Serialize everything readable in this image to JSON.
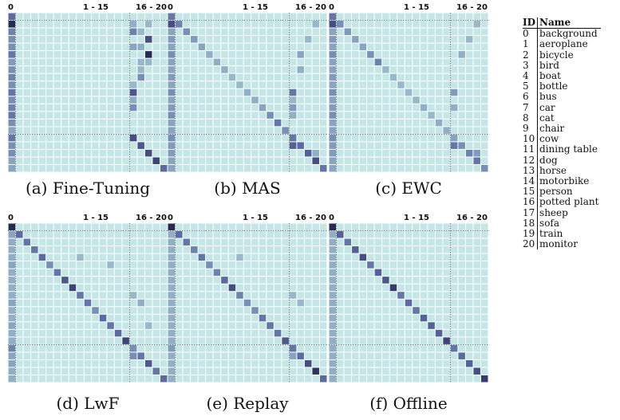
{
  "header_labels": [
    "0",
    "1 - 15",
    "16 - 20"
  ],
  "colors": {
    "background_cell": "#c4e6e6",
    "grid_line": "#ffffff",
    "divider_line": "#555555",
    "scale": [
      "#bfe4e4",
      "#9dc3cd",
      "#7f9bbd",
      "#5b6aa0",
      "#3d4578",
      "#1e2246"
    ]
  },
  "panels": [
    {
      "caption": "(a) Fine-Tuning",
      "col0": [
        0.6,
        0.95,
        0.5,
        0.45,
        0.45,
        0.55,
        0.4,
        0.45,
        0.5,
        0.45,
        0.55,
        0.45,
        0.5,
        0.55,
        0.45,
        0.35,
        0.55,
        0.45,
        0.45,
        0.35,
        0.35
      ],
      "cells": [
        [
          1,
          16,
          0.3
        ],
        [
          1,
          18,
          0.25
        ],
        [
          2,
          16,
          0.5
        ],
        [
          2,
          17,
          0.25
        ],
        [
          3,
          18,
          0.75
        ],
        [
          4,
          16,
          0.35
        ],
        [
          4,
          17,
          0.3
        ],
        [
          5,
          18,
          0.95
        ],
        [
          6,
          17,
          0.25
        ],
        [
          6,
          18,
          0.25
        ],
        [
          7,
          17,
          0.25
        ],
        [
          8,
          17,
          0.45
        ],
        [
          9,
          16,
          0.25
        ],
        [
          10,
          16,
          0.7
        ],
        [
          11,
          16,
          0.3
        ],
        [
          12,
          16,
          0.45
        ],
        [
          16,
          16,
          0.75
        ],
        [
          17,
          17,
          0.7
        ],
        [
          18,
          18,
          0.75
        ],
        [
          19,
          19,
          0.8
        ],
        [
          20,
          20,
          0.6
        ]
      ]
    },
    {
      "caption": "(b) MAS",
      "col0": [
        0.55,
        0.75,
        0.35,
        0.4,
        0.35,
        0.45,
        0.35,
        0.35,
        0.4,
        0.35,
        0.45,
        0.35,
        0.4,
        0.45,
        0.35,
        0.35,
        0.45,
        0.4,
        0.4,
        0.35,
        0.35
      ],
      "cells": [
        [
          1,
          1,
          0.5
        ],
        [
          2,
          2,
          0.45
        ],
        [
          3,
          3,
          0.4
        ],
        [
          4,
          4,
          0.35
        ],
        [
          5,
          5,
          0.3
        ],
        [
          6,
          6,
          0.3
        ],
        [
          7,
          7,
          0.3
        ],
        [
          8,
          8,
          0.25
        ],
        [
          9,
          9,
          0.25
        ],
        [
          10,
          10,
          0.3
        ],
        [
          11,
          11,
          0.3
        ],
        [
          12,
          12,
          0.35
        ],
        [
          13,
          13,
          0.45
        ],
        [
          14,
          14,
          0.55
        ],
        [
          15,
          15,
          0.45
        ],
        [
          16,
          16,
          0.55
        ],
        [
          17,
          17,
          0.6
        ],
        [
          18,
          18,
          0.65
        ],
        [
          19,
          19,
          0.75
        ],
        [
          20,
          20,
          0.55
        ],
        [
          1,
          19,
          0.25
        ],
        [
          3,
          18,
          0.25
        ],
        [
          5,
          17,
          0.35
        ],
        [
          7,
          17,
          0.3
        ],
        [
          10,
          16,
          0.55
        ],
        [
          11,
          16,
          0.25
        ],
        [
          12,
          16,
          0.4
        ],
        [
          13,
          16,
          0.3
        ],
        [
          17,
          16,
          0.65
        ],
        [
          18,
          19,
          0.3
        ]
      ]
    },
    {
      "caption": "(c) EWC",
      "col0": [
        0.55,
        0.75,
        0.35,
        0.4,
        0.35,
        0.45,
        0.35,
        0.35,
        0.4,
        0.35,
        0.45,
        0.35,
        0.4,
        0.45,
        0.35,
        0.35,
        0.45,
        0.4,
        0.4,
        0.35,
        0.35
      ],
      "cells": [
        [
          1,
          1,
          0.45
        ],
        [
          2,
          2,
          0.4
        ],
        [
          3,
          3,
          0.35
        ],
        [
          4,
          4,
          0.35
        ],
        [
          5,
          5,
          0.45
        ],
        [
          6,
          6,
          0.5
        ],
        [
          7,
          7,
          0.25
        ],
        [
          8,
          8,
          0.25
        ],
        [
          9,
          9,
          0.25
        ],
        [
          10,
          10,
          0.25
        ],
        [
          11,
          11,
          0.25
        ],
        [
          12,
          12,
          0.3
        ],
        [
          13,
          13,
          0.25
        ],
        [
          14,
          14,
          0.3
        ],
        [
          15,
          15,
          0.3
        ],
        [
          16,
          16,
          0.35
        ],
        [
          17,
          17,
          0.45
        ],
        [
          18,
          18,
          0.5
        ],
        [
          19,
          19,
          0.55
        ],
        [
          20,
          20,
          0.45
        ],
        [
          1,
          19,
          0.25
        ],
        [
          3,
          18,
          0.25
        ],
        [
          5,
          17,
          0.3
        ],
        [
          10,
          16,
          0.4
        ],
        [
          12,
          16,
          0.3
        ],
        [
          17,
          16,
          0.55
        ],
        [
          18,
          19,
          0.4
        ]
      ]
    },
    {
      "caption": "(d) LwF",
      "col0": [
        0.95,
        0.35,
        0.3,
        0.3,
        0.3,
        0.35,
        0.3,
        0.3,
        0.3,
        0.3,
        0.35,
        0.3,
        0.3,
        0.35,
        0.3,
        0.3,
        0.5,
        0.35,
        0.35,
        0.3,
        0.3
      ],
      "cells": [
        [
          1,
          1,
          0.6
        ],
        [
          2,
          2,
          0.55
        ],
        [
          3,
          3,
          0.55
        ],
        [
          4,
          4,
          0.6
        ],
        [
          5,
          5,
          0.45
        ],
        [
          6,
          6,
          0.55
        ],
        [
          7,
          7,
          0.7
        ],
        [
          8,
          8,
          0.8
        ],
        [
          9,
          9,
          0.55
        ],
        [
          10,
          10,
          0.55
        ],
        [
          11,
          11,
          0.45
        ],
        [
          12,
          12,
          0.6
        ],
        [
          13,
          13,
          0.55
        ],
        [
          14,
          14,
          0.6
        ],
        [
          15,
          15,
          0.8
        ],
        [
          16,
          16,
          0.45
        ],
        [
          17,
          17,
          0.55
        ],
        [
          18,
          18,
          0.7
        ],
        [
          19,
          19,
          0.55
        ],
        [
          20,
          20,
          0.6
        ],
        [
          4,
          9,
          0.25
        ],
        [
          5,
          13,
          0.25
        ],
        [
          9,
          16,
          0.25
        ],
        [
          10,
          17,
          0.3
        ],
        [
          13,
          18,
          0.25
        ],
        [
          17,
          16,
          0.45
        ]
      ]
    },
    {
      "caption": "(e) Replay",
      "col0": [
        0.95,
        0.3,
        0.3,
        0.3,
        0.3,
        0.3,
        0.3,
        0.3,
        0.3,
        0.3,
        0.3,
        0.3,
        0.3,
        0.3,
        0.3,
        0.3,
        0.4,
        0.3,
        0.3,
        0.3,
        0.3
      ],
      "cells": [
        [
          1,
          1,
          0.6
        ],
        [
          2,
          2,
          0.55
        ],
        [
          3,
          3,
          0.5
        ],
        [
          4,
          4,
          0.55
        ],
        [
          5,
          5,
          0.45
        ],
        [
          6,
          6,
          0.5
        ],
        [
          7,
          7,
          0.6
        ],
        [
          8,
          8,
          0.75
        ],
        [
          9,
          9,
          0.5
        ],
        [
          10,
          10,
          0.45
        ],
        [
          11,
          11,
          0.45
        ],
        [
          12,
          12,
          0.55
        ],
        [
          13,
          13,
          0.55
        ],
        [
          14,
          14,
          0.55
        ],
        [
          15,
          15,
          0.7
        ],
        [
          16,
          16,
          0.55
        ],
        [
          17,
          17,
          0.6
        ],
        [
          18,
          18,
          0.75
        ],
        [
          19,
          19,
          0.9
        ],
        [
          20,
          20,
          0.6
        ],
        [
          4,
          9,
          0.25
        ],
        [
          9,
          16,
          0.25
        ],
        [
          10,
          17,
          0.25
        ],
        [
          17,
          16,
          0.35
        ]
      ]
    },
    {
      "caption": "(f) Offline",
      "col0": [
        0.95,
        0.3,
        0.3,
        0.3,
        0.3,
        0.3,
        0.3,
        0.3,
        0.3,
        0.3,
        0.3,
        0.3,
        0.3,
        0.3,
        0.3,
        0.3,
        0.3,
        0.3,
        0.3,
        0.3,
        0.3
      ],
      "cells": [
        [
          1,
          1,
          0.65
        ],
        [
          2,
          2,
          0.55
        ],
        [
          3,
          3,
          0.65
        ],
        [
          4,
          4,
          0.75
        ],
        [
          5,
          5,
          0.55
        ],
        [
          6,
          6,
          0.65
        ],
        [
          7,
          7,
          0.7
        ],
        [
          8,
          8,
          0.85
        ],
        [
          9,
          9,
          0.55
        ],
        [
          10,
          10,
          0.6
        ],
        [
          11,
          11,
          0.55
        ],
        [
          12,
          12,
          0.65
        ],
        [
          13,
          13,
          0.65
        ],
        [
          14,
          14,
          0.65
        ],
        [
          15,
          15,
          0.8
        ],
        [
          16,
          16,
          0.55
        ],
        [
          17,
          17,
          0.6
        ],
        [
          18,
          18,
          0.65
        ],
        [
          19,
          19,
          0.75
        ],
        [
          20,
          20,
          0.85
        ]
      ]
    }
  ],
  "legend": {
    "id_header": "ID",
    "name_header": "Name",
    "rows": [
      {
        "id": "0",
        "name": "background"
      },
      {
        "id": "1",
        "name": "aeroplane"
      },
      {
        "id": "2",
        "name": "bicycle"
      },
      {
        "id": "3",
        "name": "bird"
      },
      {
        "id": "4",
        "name": "boat"
      },
      {
        "id": "5",
        "name": "bottle"
      },
      {
        "id": "6",
        "name": "bus"
      },
      {
        "id": "7",
        "name": "car"
      },
      {
        "id": "8",
        "name": "cat"
      },
      {
        "id": "9",
        "name": "chair"
      },
      {
        "id": "10",
        "name": "cow"
      },
      {
        "id": "11",
        "name": "dining table"
      },
      {
        "id": "12",
        "name": "dog"
      },
      {
        "id": "13",
        "name": "horse"
      },
      {
        "id": "14",
        "name": "motorbike"
      },
      {
        "id": "15",
        "name": "person"
      },
      {
        "id": "16",
        "name": "potted plant"
      },
      {
        "id": "17",
        "name": "sheep"
      },
      {
        "id": "18",
        "name": "sofa"
      },
      {
        "id": "19",
        "name": "train"
      },
      {
        "id": "20",
        "name": "monitor"
      }
    ]
  }
}
